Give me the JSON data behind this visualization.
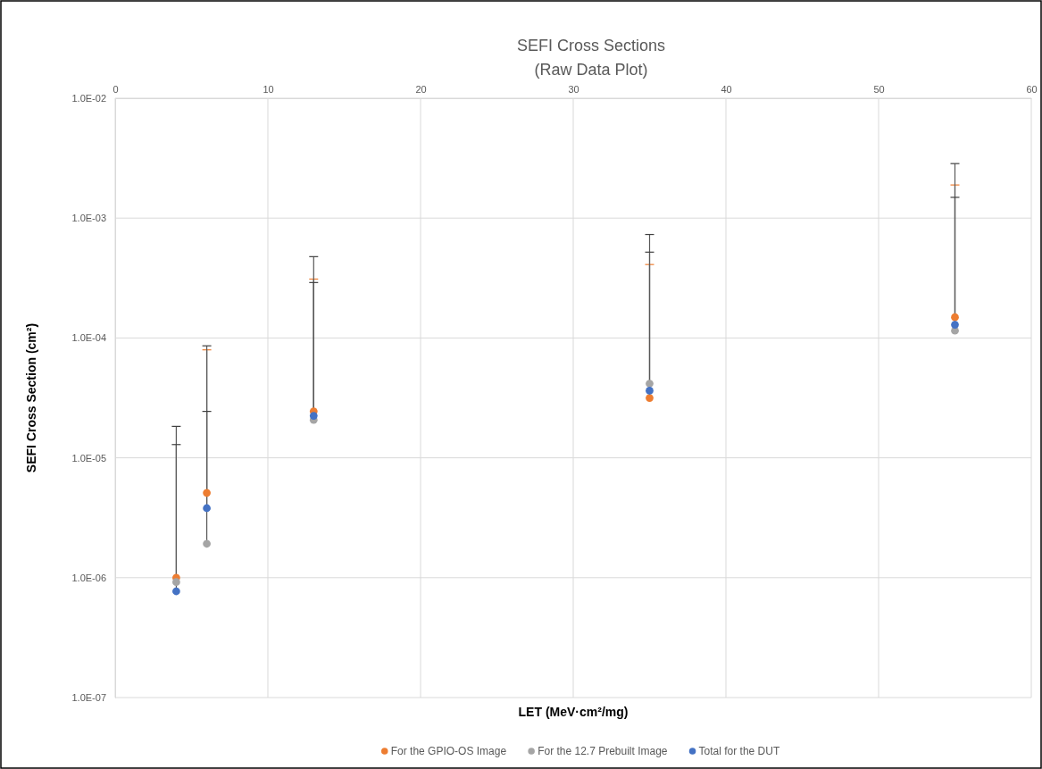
{
  "chart_data": {
    "type": "scatter",
    "title": "SEFI Cross Sections",
    "subtitle": "(Raw Data Plot)",
    "xlabel": "LET (MeV·cm²/mg)",
    "ylabel": "SEFI Cross Section (cm²)",
    "x": [
      4,
      6,
      13,
      35,
      55
    ],
    "series": [
      {
        "name": "For the GPIO-OS Image",
        "color": "#ed7d31",
        "values": [
          1e-06,
          5.1e-06,
          2.44e-05,
          3.16e-05,
          0.000149
        ],
        "errors": [
          null,
          [
            5.1e-06,
            7.96e-05
          ],
          [
            2.44e-05,
            0.00031
          ],
          [
            3.16e-05,
            0.00041
          ],
          [
            0.000149,
            0.00189
          ]
        ]
      },
      {
        "name": "For the 12.7 Prebuilt Image",
        "color": "#a5a5a5",
        "values": [
          9.2e-07,
          1.92e-06,
          2.07e-05,
          4.16e-05,
          0.000115
        ],
        "errors": [
          [
            9.2e-07,
            1.83e-05
          ],
          [
            1.92e-06,
            8.6e-05
          ],
          [
            2.07e-05,
            0.000477
          ],
          [
            4.16e-05,
            0.00073
          ],
          [
            0.000115,
            0.00285
          ]
        ]
      },
      {
        "name": "Total for the DUT",
        "color": "#4472c4",
        "values": [
          7.7e-07,
          3.8e-06,
          2.24e-05,
          3.63e-05,
          0.000129
        ],
        "errors": [
          [
            7.7e-07,
            1.29e-05
          ],
          [
            3.8e-06,
            2.44e-05
          ],
          [
            2.24e-05,
            0.00029
          ],
          [
            3.63e-05,
            0.00052
          ],
          [
            0.000129,
            0.00149
          ]
        ]
      }
    ],
    "xlim": [
      0,
      60
    ],
    "xticks": [
      0,
      10,
      20,
      30,
      40,
      50,
      60
    ],
    "ylim": [
      1e-07,
      0.01
    ],
    "yticks": [
      {
        "value": 1e-07,
        "label": "1.0E-07"
      },
      {
        "value": 1e-06,
        "label": "1.0E-06"
      },
      {
        "value": 1e-05,
        "label": "1.0E-05"
      },
      {
        "value": 0.0001,
        "label": "1.0E-04"
      },
      {
        "value": 0.001,
        "label": "1.0E-03"
      },
      {
        "value": 0.01,
        "label": "1.0E-02"
      }
    ],
    "log": "y",
    "grid": true,
    "legend": "bottom",
    "marker": "circle"
  }
}
